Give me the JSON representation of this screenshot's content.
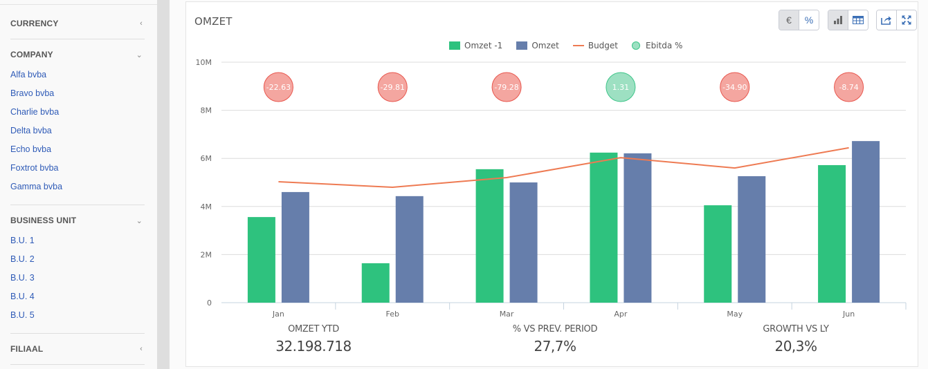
{
  "sidebar": {
    "sections": [
      {
        "title": "CURRENCY",
        "chevron": "‹",
        "expanded": false,
        "items": []
      },
      {
        "title": "COMPANY",
        "chevron": "⌄",
        "expanded": true,
        "items": [
          "Alfa bvba",
          "Bravo bvba",
          "Charlie bvba",
          "Delta bvba",
          "Echo bvba",
          "Foxtrot bvba",
          "Gamma bvba"
        ]
      },
      {
        "title": "BUSINESS UNIT",
        "chevron": "⌄",
        "expanded": true,
        "items": [
          "B.U. 1",
          "B.U. 2",
          "B.U. 3",
          "B.U. 4",
          "B.U. 5"
        ]
      },
      {
        "title": "FILIAAL",
        "chevron": "‹",
        "expanded": false,
        "items": []
      }
    ]
  },
  "panel": {
    "title": "OMZET",
    "toolbar": {
      "currency_btn": "€",
      "percent_btn": "%",
      "bar_chart_icon": "bar-chart-icon",
      "table_icon": "table-icon",
      "share_icon": "share-icon",
      "fullscreen_icon": "expand-icon"
    },
    "kpis": [
      {
        "label": "OMZET YTD",
        "value": "32.198.718"
      },
      {
        "label": "% VS PREV. PERIOD",
        "value": "27,7%"
      },
      {
        "label": "GROWTH VS LY",
        "value": "20,3%"
      }
    ]
  },
  "colors": {
    "omzet_prev": "#2ec27e",
    "omzet": "#667eab",
    "budget": "#ee7a52",
    "ebitda_neg_fill": "#f4a6a0",
    "ebitda_neg_stroke": "#e8564d",
    "ebitda_pos_fill": "#9de0c2",
    "ebitda_pos_stroke": "#3cc488"
  },
  "chart_data": {
    "type": "bar",
    "title": "OMZET",
    "xlabel": "",
    "ylabel": "",
    "categories": [
      "Jan",
      "Feb",
      "Mar",
      "Apr",
      "May",
      "Jun"
    ],
    "ylim": [
      0,
      10000000
    ],
    "yticks": [
      0,
      2000000,
      4000000,
      6000000,
      8000000,
      10000000
    ],
    "ytick_labels": [
      "0",
      "2M",
      "4M",
      "6M",
      "8M",
      "10M"
    ],
    "grid": true,
    "legend_position": "top-center",
    "series": [
      {
        "name": "Omzet -1",
        "type": "bar",
        "values": [
          3560000,
          1640000,
          5550000,
          6240000,
          4050000,
          5720000
        ]
      },
      {
        "name": "Omzet",
        "type": "bar",
        "values": [
          4600000,
          4430000,
          5000000,
          6210000,
          5260000,
          6720000
        ]
      },
      {
        "name": "Budget",
        "type": "line",
        "values": [
          5030000,
          4800000,
          5200000,
          6030000,
          5600000,
          6440000
        ]
      },
      {
        "name": "Ebitda %",
        "type": "bubble",
        "values": [
          -22.63,
          -29.81,
          -79.28,
          1.31,
          -34.9,
          -8.74
        ],
        "labels": [
          "-22.63",
          "-29.81",
          "-79.28",
          "1.31",
          "-34.90",
          "-8.74"
        ]
      }
    ]
  }
}
